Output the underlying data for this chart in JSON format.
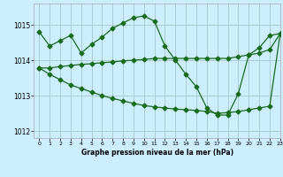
{
  "xlabel": "Graphe pression niveau de la mer (hPa)",
  "xlim": [
    -0.5,
    23
  ],
  "ylim": [
    1011.8,
    1015.6
  ],
  "yticks": [
    1012,
    1013,
    1014,
    1015
  ],
  "xticks": [
    0,
    1,
    2,
    3,
    4,
    5,
    6,
    7,
    8,
    9,
    10,
    11,
    12,
    13,
    14,
    15,
    16,
    17,
    18,
    19,
    20,
    21,
    22,
    23
  ],
  "bg_color": "#cceeff",
  "grid_color": "#aacccc",
  "line_color": "#1a6b1a",
  "series": [
    {
      "x": [
        0,
        1,
        2,
        3,
        4,
        5,
        6,
        7,
        8,
        9,
        10,
        11,
        12,
        13,
        14,
        15,
        16,
        17,
        18,
        19,
        20,
        21,
        22,
        23
      ],
      "y": [
        1014.8,
        1014.4,
        1014.55,
        1014.7,
        1014.2,
        1014.45,
        1014.65,
        1014.9,
        1015.05,
        1015.2,
        1015.25,
        1015.1,
        1014.4,
        1014.0,
        1013.6,
        1013.25,
        1012.65,
        1012.45,
        1012.45,
        1013.05,
        1014.15,
        1014.35,
        1014.7,
        1014.75
      ]
    },
    {
      "x": [
        0,
        1,
        2,
        3,
        4,
        5,
        6,
        7,
        8,
        9,
        10,
        11,
        12,
        13,
        14,
        15,
        16,
        17,
        18,
        19,
        20,
        21,
        22,
        23
      ],
      "y": [
        1013.78,
        1013.78,
        1013.82,
        1013.85,
        1013.88,
        1013.9,
        1013.93,
        1013.95,
        1013.98,
        1014.0,
        1014.02,
        1014.05,
        1014.05,
        1014.05,
        1014.05,
        1014.05,
        1014.05,
        1014.05,
        1014.05,
        1014.1,
        1014.15,
        1014.2,
        1014.3,
        1014.75
      ]
    },
    {
      "x": [
        0,
        1,
        2,
        3,
        4,
        5,
        6,
        7,
        8,
        9,
        10,
        11,
        12,
        13,
        14,
        15,
        16,
        17,
        18,
        19,
        20,
        21,
        22,
        23
      ],
      "y": [
        1013.78,
        1013.6,
        1013.45,
        1013.3,
        1013.2,
        1013.1,
        1013.0,
        1012.92,
        1012.85,
        1012.78,
        1012.72,
        1012.68,
        1012.65,
        1012.62,
        1012.6,
        1012.58,
        1012.55,
        1012.5,
        1012.52,
        1012.55,
        1012.6,
        1012.65,
        1012.7,
        1014.75
      ]
    }
  ]
}
